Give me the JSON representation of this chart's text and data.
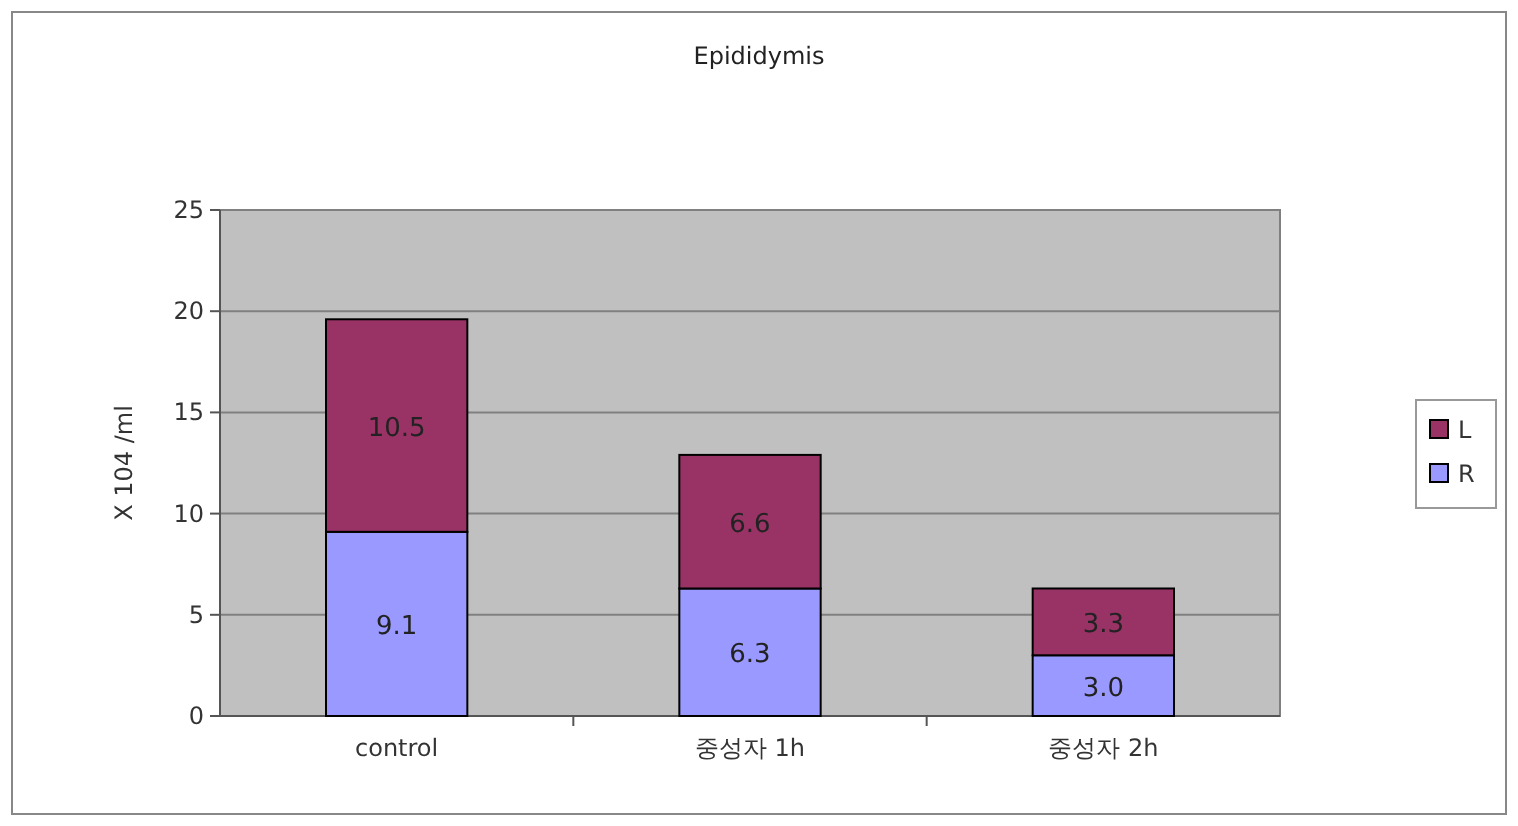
{
  "chart_data": {
    "type": "bar",
    "title": "Epididymis",
    "ylabel": "X 104 /ml",
    "categories": [
      "control",
      "중성자 1h",
      "중성자 2h"
    ],
    "stacked": true,
    "series": [
      {
        "name": "R",
        "color": "#9999ff",
        "values": [
          9.1,
          6.3,
          3.0
        ],
        "value_labels": [
          "9.1",
          "6.3",
          "3.0"
        ]
      },
      {
        "name": "L",
        "color": "#993366",
        "values": [
          10.5,
          6.6,
          3.3
        ],
        "value_labels": [
          "10.5",
          "6.6",
          "3.3"
        ]
      }
    ],
    "ylim": [
      0,
      25
    ],
    "yticks": [
      0,
      5,
      10,
      15,
      20,
      25
    ],
    "grid": "y",
    "legend": "right"
  }
}
